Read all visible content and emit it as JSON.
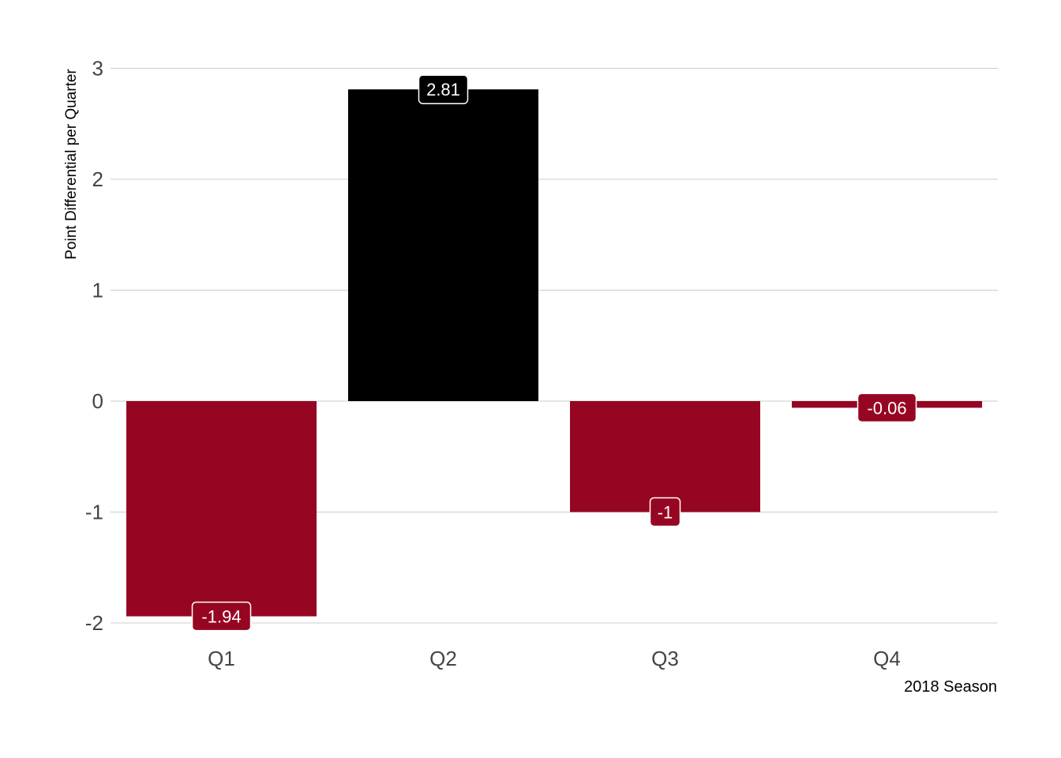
{
  "chart_data": {
    "type": "bar",
    "categories": [
      "Q1",
      "Q2",
      "Q3",
      "Q4"
    ],
    "values": [
      -1.94,
      2.81,
      -1,
      -0.06
    ],
    "value_labels": [
      "-1.94",
      "2.81",
      "-1",
      "-0.06"
    ],
    "ylabel": "Point Differential per Quarter",
    "caption": "2018 Season",
    "ylim": [
      -2,
      3
    ],
    "yticks": [
      -2,
      -1,
      0,
      1,
      2,
      3
    ],
    "grid": true,
    "colors": {
      "positive": "#000000",
      "negative": "#960622"
    }
  }
}
